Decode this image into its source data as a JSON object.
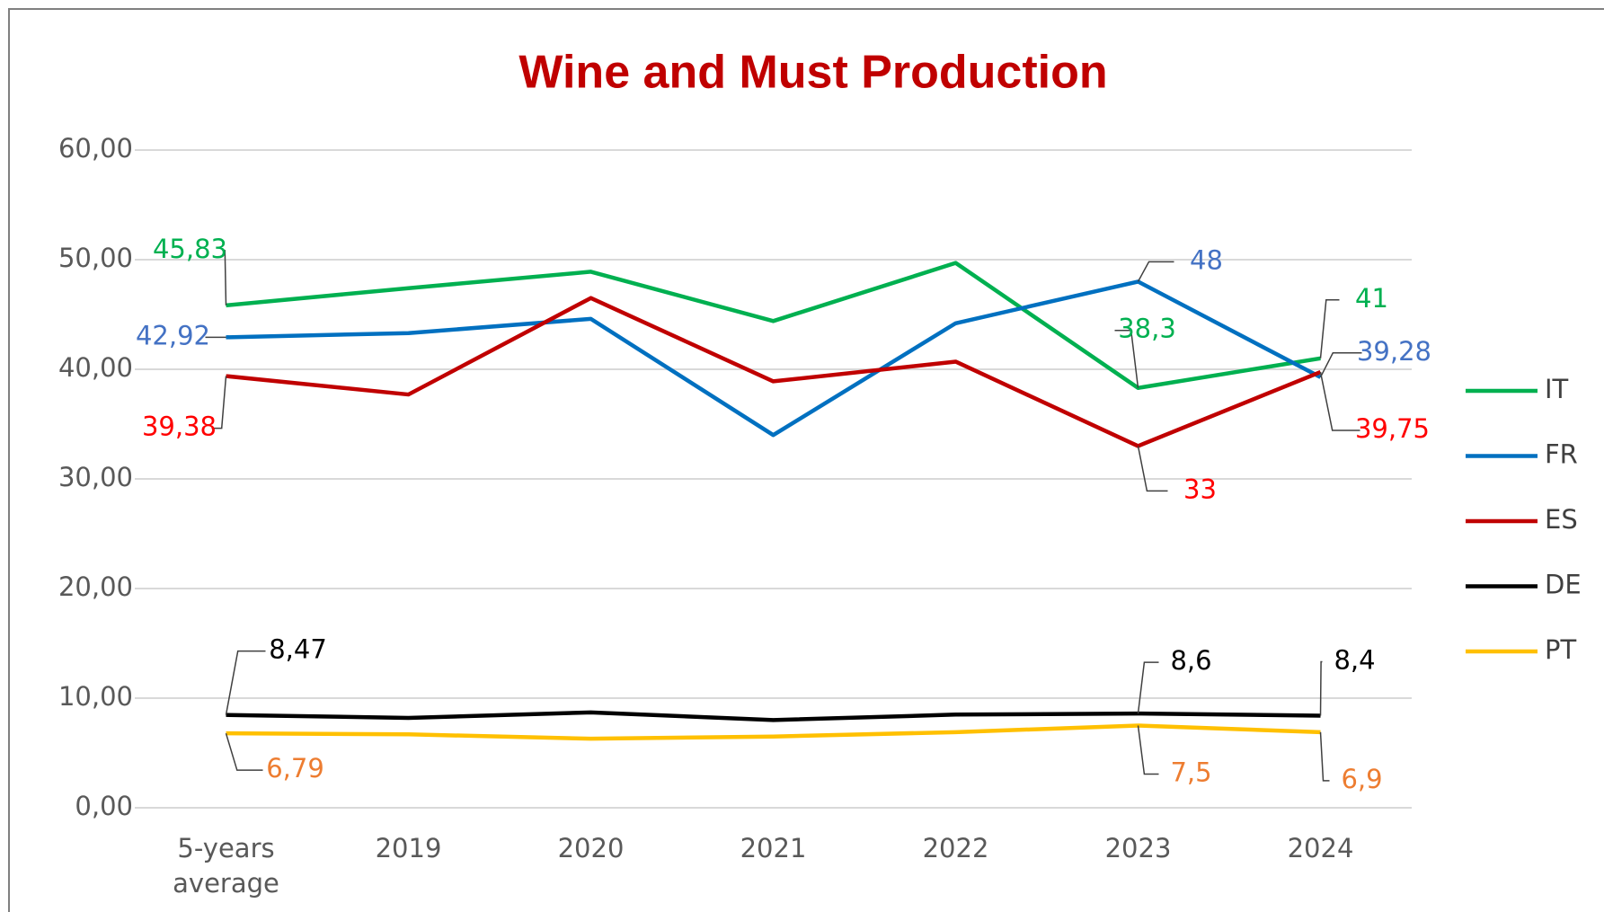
{
  "chart_data": {
    "type": "line",
    "title": "Wine and Must Production",
    "categories": [
      "5-years average",
      "2019",
      "2020",
      "2021",
      "2022",
      "2023",
      "2024"
    ],
    "ylim": [
      0,
      60
    ],
    "yticks": [
      {
        "value": 0,
        "label": "0,00"
      },
      {
        "value": 10,
        "label": "10,00"
      },
      {
        "value": 20,
        "label": "20,00"
      },
      {
        "value": 30,
        "label": "30,00"
      },
      {
        "value": 40,
        "label": "40,00"
      },
      {
        "value": 50,
        "label": "50,00"
      },
      {
        "value": 60,
        "label": "60,00"
      }
    ],
    "grid": true,
    "legend": "right",
    "series": [
      {
        "name": "IT",
        "color": "#00b050",
        "label_color": "#00b050",
        "values": [
          45.83,
          47.4,
          48.9,
          44.4,
          49.7,
          38.3,
          41
        ],
        "value_labels": [
          "45,83",
          null,
          null,
          null,
          null,
          "38,3",
          "41"
        ]
      },
      {
        "name": "FR",
        "color": "#0070c0",
        "label_color": "#4472c4",
        "values": [
          42.92,
          43.3,
          44.6,
          34.0,
          44.2,
          48,
          39.28
        ],
        "value_labels": [
          "42,92",
          null,
          null,
          null,
          null,
          "48",
          "39,28"
        ]
      },
      {
        "name": "ES",
        "color": "#c00000",
        "label_color": "#ff0000",
        "values": [
          39.38,
          37.7,
          46.5,
          38.9,
          40.7,
          33,
          39.75
        ],
        "value_labels": [
          "39,38",
          null,
          null,
          null,
          null,
          "33",
          "39,75"
        ]
      },
      {
        "name": "DE",
        "color": "#000000",
        "label_color": "#000000",
        "values": [
          8.47,
          8.2,
          8.7,
          8.0,
          8.5,
          8.6,
          8.4
        ],
        "value_labels": [
          "8,47",
          null,
          null,
          null,
          null,
          "8,6",
          "8,4"
        ]
      },
      {
        "name": "PT",
        "color": "#ffc000",
        "label_color": "#ed7d31",
        "values": [
          6.79,
          6.7,
          6.3,
          6.5,
          6.9,
          7.5,
          6.9
        ],
        "value_labels": [
          "6,79",
          null,
          null,
          null,
          null,
          "7,5",
          "6,9"
        ]
      }
    ]
  }
}
